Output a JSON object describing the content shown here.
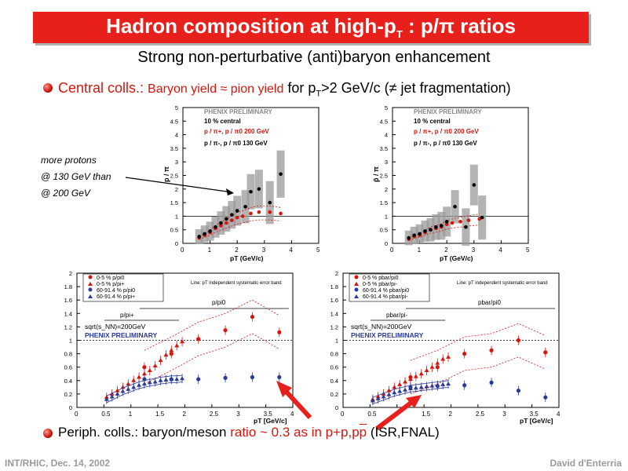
{
  "slide": {
    "title_main": "Hadron composition at high-p",
    "title_sub": "T",
    "title_tail": " : p/π ratios",
    "subtitle": "Strong non-perturbative (anti)baryon enhancement",
    "bullet1": {
      "part_a": "Central colls.: ",
      "part_b": "Baryon yield  ≈ pion yield",
      "part_c": "  for p",
      "part_c_sub": "T",
      "part_d": ">2 GeV/c (≠ jet fragmentation)"
    },
    "note_lines": [
      "more protons",
      "@ 130 GeV than",
      "@ 200 GeV"
    ],
    "bullet2": {
      "part_a": "Periph. colls.: baryon/meson ",
      "part_b": "ratio ~ 0.3 as in p+p,p",
      "part_c": "p",
      "part_d": " (ISR,FNAL)"
    },
    "footer_left": "INT/RHIC, Dec. 14, 2002",
    "footer_right": "David d'Enterria"
  },
  "colors": {
    "accent": "#e8201c",
    "red_text": "#d8140c",
    "footer": "#9a9a9a"
  },
  "chart_data": [
    {
      "type": "scatter",
      "panel": "top-left",
      "title": "PHENIX PRELIMINARY",
      "legend": [
        "10 % central",
        "p / π+, p / π0  200 GeV",
        "p / π-, p / π0  130 GeV"
      ],
      "xlabel": "pT (GeV/c)",
      "ylabel": "p / π",
      "xlim": [
        0,
        5
      ],
      "ylim": [
        0,
        5
      ],
      "xticks": [
        "0",
        "1",
        "2",
        "3",
        "4",
        "5"
      ],
      "yticks": [
        "0",
        "0.5",
        "1",
        "1.5",
        "2",
        "2.5",
        "3",
        "3.5",
        "4",
        "4.5",
        "5"
      ],
      "series": [
        {
          "name": "p / π+, p / π0  200 GeV",
          "color": "#d8140c",
          "x": [
            0.6,
            0.8,
            1.0,
            1.2,
            1.4,
            1.6,
            1.8,
            2.0,
            2.2,
            2.5,
            2.8,
            3.2,
            3.6
          ],
          "y": [
            0.2,
            0.3,
            0.4,
            0.55,
            0.65,
            0.75,
            0.85,
            0.95,
            1.0,
            1.1,
            1.15,
            1.15,
            1.1
          ]
        },
        {
          "name": "p / π-, p / π0  130 GeV",
          "color": "#000000",
          "x": [
            0.6,
            0.8,
            1.0,
            1.2,
            1.4,
            1.6,
            1.8,
            2.0,
            2.3,
            2.5,
            2.8,
            3.2,
            3.6
          ],
          "y": [
            0.25,
            0.35,
            0.45,
            0.6,
            0.75,
            0.9,
            1.05,
            1.2,
            1.35,
            1.9,
            2.0,
            1.5,
            2.55
          ]
        }
      ]
    },
    {
      "type": "scatter",
      "panel": "top-right",
      "title": "PHENIX PRELIMINARY",
      "legend": [
        "10 % central",
        "p / π+, p / π0  200 GeV",
        "p / π-, p / π0  130 GeV"
      ],
      "xlabel": "pT (GeV/c)",
      "ylabel": "p̄ / π",
      "xlim": [
        0,
        5
      ],
      "ylim": [
        0,
        5
      ],
      "xticks": [
        "0",
        "1",
        "2",
        "3",
        "4",
        "5"
      ],
      "yticks": [
        "0",
        "0.5",
        "1",
        "1.5",
        "2",
        "2.5",
        "3",
        "3.5",
        "4",
        "4.5",
        "5"
      ],
      "series": [
        {
          "name": "p / π+, p / π0  200 GeV",
          "color": "#d8140c",
          "x": [
            0.6,
            0.8,
            1.0,
            1.2,
            1.4,
            1.6,
            1.8,
            2.0,
            2.2,
            2.5,
            2.8,
            3.2
          ],
          "y": [
            0.15,
            0.25,
            0.3,
            0.4,
            0.5,
            0.55,
            0.6,
            0.7,
            0.75,
            0.8,
            0.85,
            0.9
          ]
        },
        {
          "name": "p / π-, p / π0  130 GeV",
          "color": "#000000",
          "x": [
            0.6,
            0.8,
            1.0,
            1.2,
            1.4,
            1.6,
            1.8,
            2.0,
            2.3,
            2.7,
            3.0,
            3.3
          ],
          "y": [
            0.2,
            0.3,
            0.35,
            0.45,
            0.5,
            0.6,
            0.65,
            0.8,
            1.35,
            0.6,
            2.15,
            0.95
          ]
        }
      ]
    },
    {
      "type": "scatter",
      "panel": "bottom-left",
      "legend": [
        "0-5 % p/pi0",
        "0-5 % p/pi+",
        "60-91.4 % p/pi0",
        "60-91.4 % p/pi+"
      ],
      "annotations": [
        "Line: pT independent systematic error band",
        "p/pi0",
        "p/pi+",
        "sqrt(s_NN)=200GeV",
        "PHENIX PRELIMINARY"
      ],
      "xlabel": "pT [GeV/c]",
      "xlim": [
        0,
        4
      ],
      "ylim": [
        0,
        2
      ],
      "xticks": [
        "0",
        "0.5",
        "1",
        "1.5",
        "2",
        "2.5",
        "3",
        "3.5",
        "4"
      ],
      "yticks": [
        "0",
        "0.2",
        "0.4",
        "0.6",
        "0.8",
        "1",
        "1.2",
        "1.4",
        "1.6",
        "1.8",
        "2"
      ],
      "series": [
        {
          "name": "0-5 % p/pi0",
          "color": "#d8140c",
          "x": [
            1.25,
            1.75,
            2.25,
            2.75,
            3.25,
            3.75
          ],
          "y": [
            0.6,
            0.8,
            1.02,
            1.15,
            1.35,
            1.12
          ]
        },
        {
          "name": "0-5 % p/pi+",
          "color": "#d8140c",
          "x": [
            0.55,
            0.65,
            0.75,
            0.85,
            0.95,
            1.05,
            1.15,
            1.25,
            1.35,
            1.45,
            1.55,
            1.65,
            1.75,
            1.85,
            1.95
          ],
          "y": [
            0.15,
            0.2,
            0.25,
            0.3,
            0.35,
            0.4,
            0.45,
            0.5,
            0.55,
            0.62,
            0.7,
            0.78,
            0.85,
            0.92,
            0.98
          ]
        },
        {
          "name": "60-91.4 % p/pi0",
          "color": "#2a3a9a",
          "x": [
            1.25,
            1.75,
            2.25,
            2.75,
            3.25,
            3.75
          ],
          "y": [
            0.42,
            0.42,
            0.42,
            0.44,
            0.45,
            0.45
          ]
        },
        {
          "name": "60-91.4 % p/pi+",
          "color": "#2a3a9a",
          "x": [
            0.55,
            0.65,
            0.75,
            0.85,
            0.95,
            1.05,
            1.15,
            1.25,
            1.35,
            1.45,
            1.55,
            1.65,
            1.75,
            1.85,
            1.95
          ],
          "y": [
            0.12,
            0.16,
            0.2,
            0.24,
            0.27,
            0.3,
            0.33,
            0.35,
            0.37,
            0.38,
            0.4,
            0.41,
            0.42,
            0.42,
            0.43
          ]
        }
      ]
    },
    {
      "type": "scatter",
      "panel": "bottom-right",
      "legend": [
        "0-5 % pbar/pi0",
        "0-5 % pbar/pi-",
        "60-91.4 % pbar/pi0",
        "60-91.4 % pbar/pi-"
      ],
      "annotations": [
        "Line: pT independent systematic error band",
        "pbar/pi0",
        "pbar/pi-",
        "sqrt(s_NN)=200GeV",
        "PHENIX PRELIMINARY"
      ],
      "xlabel": "pT [GeV/c]",
      "xlim": [
        0,
        4
      ],
      "ylim": [
        0,
        2
      ],
      "xticks": [
        "0",
        "0.5",
        "1",
        "1.5",
        "2",
        "2.5",
        "3",
        "3.5",
        "4"
      ],
      "yticks": [
        "0",
        "0.2",
        "0.4",
        "0.6",
        "0.8",
        "1",
        "1.2",
        "1.4",
        "1.6",
        "1.8",
        "2"
      ],
      "series": [
        {
          "name": "0-5 % pbar/pi0",
          "color": "#d8140c",
          "x": [
            1.25,
            1.75,
            2.25,
            2.75,
            3.25,
            3.75
          ],
          "y": [
            0.45,
            0.6,
            0.8,
            0.85,
            1.0,
            0.82
          ]
        },
        {
          "name": "0-5 % pbar/pi-",
          "color": "#d8140c",
          "x": [
            0.55,
            0.65,
            0.75,
            0.85,
            0.95,
            1.05,
            1.15,
            1.25,
            1.35,
            1.45,
            1.55,
            1.65,
            1.75,
            1.85,
            1.95
          ],
          "y": [
            0.12,
            0.16,
            0.2,
            0.25,
            0.3,
            0.34,
            0.38,
            0.42,
            0.46,
            0.5,
            0.55,
            0.6,
            0.66,
            0.72,
            0.75
          ]
        },
        {
          "name": "60-91.4 % pbar/pi0",
          "color": "#2a3a9a",
          "x": [
            1.25,
            1.75,
            2.25,
            2.75,
            3.25,
            3.75
          ],
          "y": [
            0.3,
            0.32,
            0.33,
            0.37,
            0.25,
            0.15
          ]
        },
        {
          "name": "60-91.4 % pbar/pi-",
          "color": "#2a3a9a",
          "x": [
            0.55,
            0.65,
            0.75,
            0.85,
            0.95,
            1.05,
            1.15,
            1.25,
            1.35,
            1.45,
            1.55,
            1.65,
            1.75,
            1.85,
            1.95
          ],
          "y": [
            0.1,
            0.13,
            0.16,
            0.19,
            0.22,
            0.24,
            0.26,
            0.28,
            0.29,
            0.3,
            0.31,
            0.32,
            0.33,
            0.34,
            0.35
          ]
        }
      ]
    }
  ]
}
